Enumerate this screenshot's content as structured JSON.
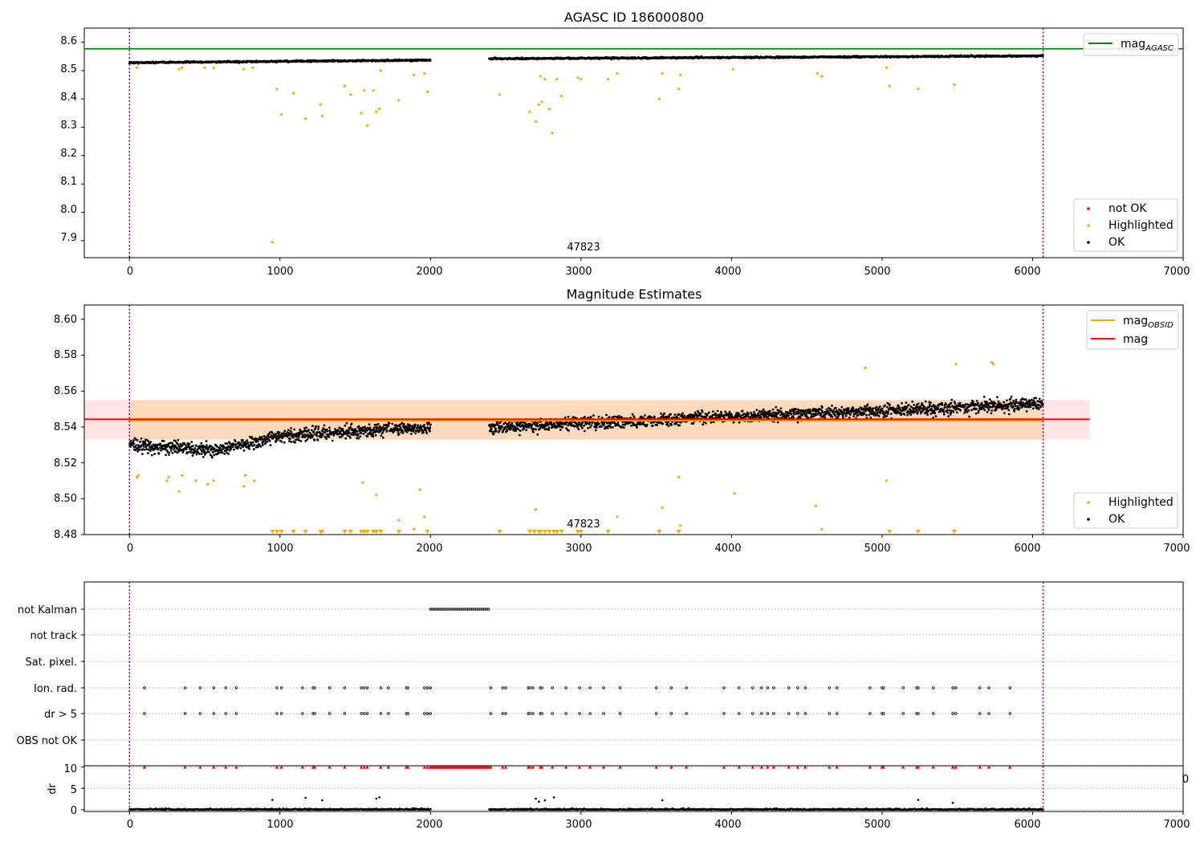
{
  "chart_data": [
    {
      "type": "scatter",
      "title": "AGASC ID 186000800",
      "xlim": [
        -300,
        7000
      ],
      "ylim": [
        7.84,
        8.65
      ],
      "xticks": [
        "0",
        "1000",
        "2000",
        "3000",
        "4000",
        "5000",
        "6000",
        "7000"
      ],
      "yticks": [
        "7.9",
        "8.0",
        "8.1",
        "8.2",
        "8.3",
        "8.4",
        "8.5",
        "8.6"
      ],
      "annotation": "47823",
      "vlines": [
        0,
        6070
      ],
      "hline": {
        "name": "mag_AGASC",
        "value": 8.577,
        "color": "#008000"
      },
      "legend_lines": [
        {
          "label": "mag",
          "sub": "AGASC",
          "color": "#008000"
        }
      ],
      "legend_points": [
        {
          "label": "not OK",
          "color": "#ff0000"
        },
        {
          "label": "Highlighted",
          "color": "#ffa500"
        },
        {
          "label": "OK",
          "color": "#000000"
        }
      ],
      "series": [
        {
          "name": "OK",
          "color": "#000000",
          "segments": [
            [
              0,
              2000
            ],
            [
              2390,
              6070
            ]
          ],
          "trend": [
            [
              0,
              8.528
            ],
            [
              2000,
              8.537
            ],
            [
              2400,
              8.542
            ],
            [
              6070,
              8.552
            ]
          ]
        },
        {
          "name": "Highlighted",
          "color": "#ffa500",
          "x": [
            50,
            330,
            350,
            500,
            560,
            760,
            820,
            950,
            980,
            1010,
            1090,
            1170,
            1270,
            1280,
            1430,
            1470,
            1540,
            1560,
            1580,
            1620,
            1640,
            1660,
            1670,
            1790,
            1890,
            1960,
            1980,
            2460,
            2660,
            2700,
            2720,
            2730,
            2740,
            2760,
            2790,
            2810,
            2840,
            2870,
            2980,
            3000,
            3180,
            3240,
            3520,
            3540,
            3650,
            3660,
            4010,
            4570,
            4600,
            5030,
            5050,
            5240,
            5480
          ],
          "y": [
            8.51,
            8.505,
            8.51,
            8.51,
            8.51,
            8.505,
            8.51,
            7.895,
            8.435,
            8.345,
            8.42,
            8.33,
            8.38,
            8.34,
            8.445,
            8.415,
            8.35,
            8.43,
            8.305,
            8.43,
            8.355,
            8.365,
            8.5,
            8.395,
            8.485,
            8.49,
            8.425,
            8.415,
            8.355,
            8.32,
            8.38,
            8.48,
            8.39,
            8.47,
            8.365,
            8.28,
            8.47,
            8.41,
            8.475,
            8.47,
            8.47,
            8.49,
            8.4,
            8.49,
            8.435,
            8.485,
            8.505,
            8.49,
            8.48,
            8.51,
            8.445,
            8.435,
            8.45
          ]
        },
        {
          "name": "not OK",
          "color": "#ff0000",
          "x": [],
          "y": []
        }
      ]
    },
    {
      "type": "scatter",
      "title": "Magnitude Estimates",
      "xlim": [
        -300,
        7000
      ],
      "ylim": [
        8.48,
        8.608
      ],
      "xticks": [
        "0",
        "1000",
        "2000",
        "3000",
        "4000",
        "5000",
        "6000",
        "7000"
      ],
      "yticks": [
        "8.48",
        "8.50",
        "8.52",
        "8.54",
        "8.56",
        "8.58",
        "8.60"
      ],
      "annotation": "47823",
      "vlines": [
        0,
        6070
      ],
      "band": {
        "x": [
          -300,
          6380
        ],
        "y": [
          8.533,
          8.555
        ],
        "color": "#ff9999"
      },
      "hlines": [
        {
          "name": "mag_OBSID",
          "value": 8.5435,
          "x": [
            0,
            6070
          ],
          "color": "#ffa500"
        },
        {
          "name": "mag",
          "value": 8.5443,
          "x": [
            -300,
            6380
          ],
          "color": "#ff0000"
        }
      ],
      "legend_lines": [
        {
          "label": "mag",
          "sub": "OBSID",
          "color": "#ffa500"
        },
        {
          "label": "mag",
          "sub": "",
          "color": "#ff0000"
        }
      ],
      "legend_points": [
        {
          "label": "Highlighted",
          "color": "#ffa500"
        },
        {
          "label": "OK",
          "color": "#000000"
        }
      ],
      "series": [
        {
          "name": "OK",
          "color": "#000000",
          "segments": [
            [
              0,
              2000
            ],
            [
              2390,
              6070
            ]
          ],
          "trend": [
            [
              0,
              8.53
            ],
            [
              600,
              8.527
            ],
            [
              1000,
              8.535
            ],
            [
              2000,
              8.54
            ],
            [
              2400,
              8.54
            ],
            [
              6070,
              8.553
            ]
          ]
        },
        {
          "name": "Highlighted",
          "color": "#ffa500",
          "x": [
            50,
            60,
            250,
            260,
            330,
            350,
            440,
            520,
            560,
            760,
            770,
            830,
            1550,
            1640,
            1790,
            1890,
            1930,
            1960,
            2700,
            3240,
            3540,
            3650,
            3660,
            4020,
            4560,
            4600,
            4890,
            5030,
            5490,
            5730,
            5740
          ],
          "y": [
            8.512,
            8.513,
            8.51,
            8.512,
            8.504,
            8.513,
            8.51,
            8.508,
            8.51,
            8.507,
            8.513,
            8.51,
            8.509,
            8.502,
            8.488,
            8.483,
            8.505,
            8.49,
            8.494,
            8.49,
            8.495,
            8.512,
            8.485,
            8.503,
            8.496,
            8.483,
            8.573,
            8.51,
            8.575,
            8.576,
            8.575
          ]
        },
        {
          "name": "Highlighted (below range)",
          "color": "#ffa500",
          "marker": "triangle-down",
          "x": [
            950,
            980,
            1010,
            1090,
            1170,
            1270,
            1280,
            1430,
            1470,
            1540,
            1560,
            1580,
            1620,
            1640,
            1670,
            1790,
            1980,
            2460,
            2660,
            2690,
            2720,
            2730,
            2760,
            2790,
            2820,
            2840,
            2870,
            2980,
            3000,
            3180,
            3520,
            3650,
            5050,
            5240,
            5480
          ]
        }
      ]
    },
    {
      "type": "scatter",
      "xlim": [
        -300,
        7000
      ],
      "xticks": [
        "0",
        "1000",
        "2000",
        "3000",
        "4000",
        "5000",
        "6000",
        "7000"
      ],
      "vlines": [
        0,
        6070
      ],
      "flag_rows": [
        "not Kalman",
        "not track",
        "Sat. pixel.",
        "Ion. rad.",
        "dr > 5",
        "OBS not OK"
      ],
      "flags": {
        "not Kalman": {
          "range": [
            2000,
            2390
          ]
        },
        "not track": {
          "x": []
        },
        "Sat. pixel.": {
          "x": []
        },
        "Ion. rad.": {
          "x": [
            100,
            370,
            470,
            560,
            640,
            710,
            980,
            1010,
            1150,
            1220,
            1230,
            1330,
            1430,
            1540,
            1560,
            1580,
            1670,
            1720,
            1840,
            1850,
            1960,
            1980,
            2000,
            2400,
            2480,
            2500,
            2650,
            2660,
            2680,
            2730,
            2740,
            2810,
            2900,
            2990,
            3060,
            3150,
            3260,
            3500,
            3600,
            3700,
            3950,
            4050,
            4140,
            4200,
            4240,
            4280,
            4380,
            4440,
            4490,
            4650,
            4700,
            4920,
            5000,
            5010,
            5140,
            5230,
            5240,
            5340,
            5470,
            5490,
            5650,
            5710,
            5850
          ]
        },
        "dr > 5": {
          "x": [
            100,
            370,
            470,
            560,
            640,
            710,
            980,
            1010,
            1150,
            1220,
            1230,
            1330,
            1430,
            1540,
            1560,
            1580,
            1670,
            1720,
            1840,
            1850,
            1960,
            1980,
            2000,
            2400,
            2480,
            2500,
            2650,
            2660,
            2680,
            2730,
            2740,
            2810,
            2900,
            2990,
            3060,
            3150,
            3260,
            3500,
            3600,
            3700,
            3950,
            4050,
            4140,
            4200,
            4240,
            4280,
            4380,
            4440,
            4490,
            4650,
            4700,
            4920,
            5000,
            5010,
            5140,
            5230,
            5240,
            5340,
            5470,
            5490,
            5650,
            5710,
            5850
          ]
        },
        "OBS not OK": {
          "x": []
        }
      },
      "dr": {
        "ylabel": "dr",
        "ylim": [
          -0.4,
          10.3
        ],
        "yticks": [
          "0",
          "5",
          "10"
        ],
        "clip_value": 10,
        "segments": [
          [
            0,
            2000
          ],
          [
            2390,
            6070
          ]
        ],
        "typical": [
          0,
          1.1
        ],
        "outliers": [
          [
            950,
            2.3
          ],
          [
            1170,
            2.8
          ],
          [
            1280,
            2.2
          ],
          [
            1640,
            2.6
          ],
          [
            1660,
            2.9
          ],
          [
            2700,
            2.6
          ],
          [
            2720,
            1.9
          ],
          [
            2760,
            2.2
          ],
          [
            2820,
            2.9
          ],
          [
            3540,
            2.2
          ],
          [
            5240,
            2.3
          ],
          [
            5470,
            1.6
          ]
        ]
      },
      "extra_text": "0"
    }
  ]
}
